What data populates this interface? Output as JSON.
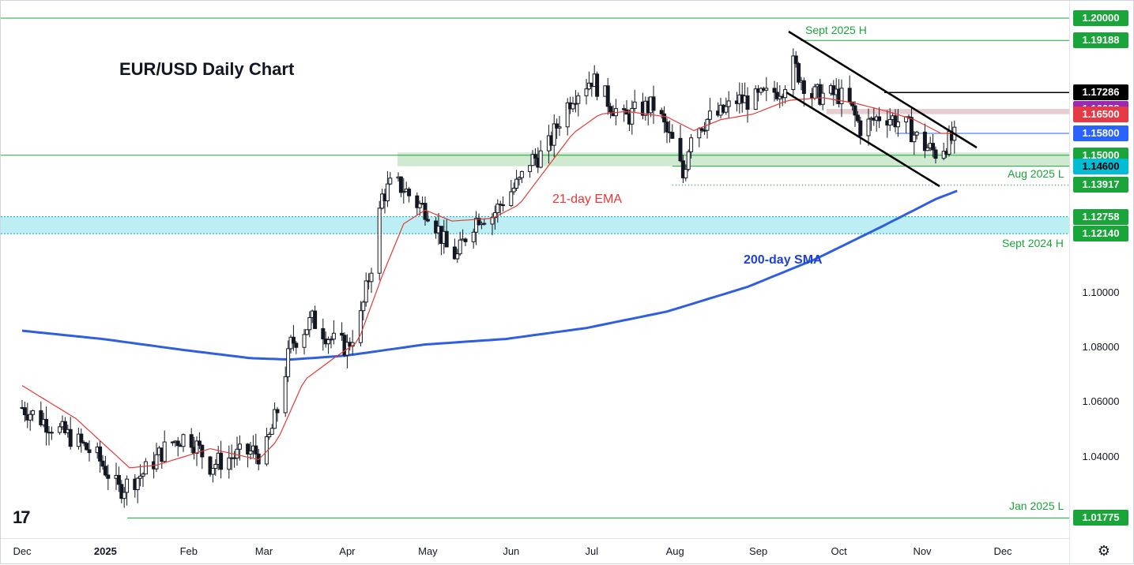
{
  "chart_data": {
    "type": "candlestick",
    "title": "EUR/USD Daily Chart",
    "ylim": [
      1.012,
      1.203
    ],
    "x_axis_labels": [
      {
        "label": "Dec",
        "bold": false,
        "day": 0
      },
      {
        "label": "2025",
        "bold": true,
        "day": 31
      },
      {
        "label": "Feb",
        "bold": false,
        "day": 62
      },
      {
        "label": "Mar",
        "bold": false,
        "day": 90
      },
      {
        "label": "Apr",
        "bold": false,
        "day": 121
      },
      {
        "label": "May",
        "bold": false,
        "day": 151
      },
      {
        "label": "Jun",
        "bold": false,
        "day": 182
      },
      {
        "label": "Jul",
        "bold": false,
        "day": 212
      },
      {
        "label": "Aug",
        "bold": false,
        "day": 243
      },
      {
        "label": "Sep",
        "bold": false,
        "day": 274
      },
      {
        "label": "Oct",
        "bold": false,
        "day": 304
      },
      {
        "label": "Nov",
        "bold": false,
        "day": 335
      },
      {
        "label": "Dec",
        "bold": false,
        "day": 365
      }
    ],
    "y_axis_ticks": [
      "1.10000",
      "1.08000",
      "1.06000",
      "1.04000"
    ],
    "price_badges": [
      {
        "label": "1.20000",
        "value": 1.2,
        "bg": "#1aa53a",
        "fg": "#ffffff"
      },
      {
        "label": "1.19188",
        "value": 1.19188,
        "bg": "#1aa53a",
        "fg": "#ffffff"
      },
      {
        "label": "1.17286",
        "value": 1.17286,
        "bg": "#000000",
        "fg": "#ffffff"
      },
      {
        "label": "1.16688",
        "value": 1.16688,
        "bg": "#9c27b0",
        "fg": "#ffffff"
      },
      {
        "label": "1.16500",
        "value": 1.165,
        "bg": "#e53945",
        "fg": "#ffffff"
      },
      {
        "label": "1.15800",
        "value": 1.158,
        "bg": "#2962ff",
        "fg": "#ffffff"
      },
      {
        "label": "1.15000",
        "value": 1.15,
        "bg": "#1aa53a",
        "fg": "#ffffff"
      },
      {
        "label": "1.14600",
        "value": 1.146,
        "bg": "#00bcd4",
        "fg": "#000000"
      },
      {
        "label": "1.13917",
        "value": 1.13917,
        "bg": "#1aa53a",
        "fg": "#ffffff"
      },
      {
        "label": "1.12758",
        "value": 1.12758,
        "bg": "#1aa53a",
        "fg": "#ffffff"
      },
      {
        "label": "1.12140",
        "value": 1.1214,
        "bg": "#1aa53a",
        "fg": "#ffffff"
      },
      {
        "label": "1.01775",
        "value": 1.01775,
        "bg": "#1aa53a",
        "fg": "#ffffff"
      }
    ],
    "levels": [
      {
        "value": 1.2,
        "color": "#1aa53a"
      },
      {
        "value": 1.19188,
        "color": "#1aa53a"
      },
      {
        "value": 1.17286,
        "color": "#000000"
      },
      {
        "value": 1.158,
        "color": "#2962ff"
      },
      {
        "value": 1.15,
        "color": "#1aa53a"
      },
      {
        "value": 1.146,
        "color": "#1aa53a"
      },
      {
        "value": 1.13917,
        "color": "#1aa53a",
        "dotted": true
      },
      {
        "value": 1.01775,
        "color": "#1aa53a"
      }
    ],
    "zones": [
      {
        "from": 1.1214,
        "to": 1.12758,
        "color": "#b2ebf2"
      },
      {
        "from": 1.146,
        "to": 1.151,
        "color": "#c8e6c9"
      },
      {
        "from": 1.165,
        "to": 1.16688,
        "color": "#e0c4c8"
      }
    ],
    "annotations": [
      {
        "text": "Sept 2025 H",
        "color": "green"
      },
      {
        "text": "Aug 2025 L",
        "color": "green"
      },
      {
        "text": "Sept 2024 H",
        "color": "green"
      },
      {
        "text": "Jan 2025 L",
        "color": "green"
      },
      {
        "text": "21-day EMA",
        "color": "red"
      },
      {
        "text": "200-day SMA",
        "color": "blue"
      }
    ],
    "closes_key": [
      [
        0,
        1.058
      ],
      [
        10,
        1.052
      ],
      [
        20,
        1.046
      ],
      [
        28,
        1.04
      ],
      [
        36,
        1.028
      ],
      [
        45,
        1.034
      ],
      [
        55,
        1.045
      ],
      [
        62,
        1.048
      ],
      [
        70,
        1.037
      ],
      [
        78,
        1.04
      ],
      [
        86,
        1.042
      ],
      [
        90,
        1.04
      ],
      [
        95,
        1.057
      ],
      [
        100,
        1.081
      ],
      [
        108,
        1.09
      ],
      [
        116,
        1.082
      ],
      [
        121,
        1.08
      ],
      [
        126,
        1.091
      ],
      [
        130,
        1.11
      ],
      [
        134,
        1.135
      ],
      [
        138,
        1.14
      ],
      [
        142,
        1.138
      ],
      [
        146,
        1.133
      ],
      [
        151,
        1.13
      ],
      [
        154,
        1.125
      ],
      [
        158,
        1.116
      ],
      [
        162,
        1.113
      ],
      [
        166,
        1.123
      ],
      [
        170,
        1.128
      ],
      [
        175,
        1.128
      ],
      [
        180,
        1.135
      ],
      [
        185,
        1.14
      ],
      [
        189,
        1.148
      ],
      [
        195,
        1.151
      ],
      [
        200,
        1.163
      ],
      [
        205,
        1.172
      ],
      [
        212,
        1.178
      ],
      [
        218,
        1.17
      ],
      [
        224,
        1.163
      ],
      [
        230,
        1.167
      ],
      [
        236,
        1.168
      ],
      [
        240,
        1.158
      ],
      [
        243,
        1.153
      ],
      [
        246,
        1.142
      ],
      [
        249,
        1.159
      ],
      [
        255,
        1.163
      ],
      [
        260,
        1.165
      ],
      [
        266,
        1.17
      ],
      [
        272,
        1.17
      ],
      [
        278,
        1.172
      ],
      [
        283,
        1.175
      ],
      [
        287,
        1.183
      ],
      [
        290,
        1.178
      ],
      [
        294,
        1.172
      ],
      [
        298,
        1.172
      ],
      [
        304,
        1.172
      ],
      [
        308,
        1.168
      ],
      [
        312,
        1.16
      ],
      [
        316,
        1.162
      ],
      [
        320,
        1.165
      ],
      [
        325,
        1.163
      ],
      [
        330,
        1.16
      ],
      [
        335,
        1.154
      ],
      [
        340,
        1.151
      ],
      [
        345,
        1.155
      ],
      [
        348,
        1.157
      ]
    ],
    "ema_key": [
      [
        0,
        1.066
      ],
      [
        20,
        1.054
      ],
      [
        40,
        1.036
      ],
      [
        50,
        1.037
      ],
      [
        70,
        1.043
      ],
      [
        88,
        1.039
      ],
      [
        95,
        1.046
      ],
      [
        105,
        1.068
      ],
      [
        116,
        1.076
      ],
      [
        125,
        1.082
      ],
      [
        134,
        1.106
      ],
      [
        142,
        1.125
      ],
      [
        150,
        1.13
      ],
      [
        160,
        1.126
      ],
      [
        175,
        1.127
      ],
      [
        185,
        1.132
      ],
      [
        195,
        1.145
      ],
      [
        205,
        1.158
      ],
      [
        215,
        1.165
      ],
      [
        225,
        1.166
      ],
      [
        240,
        1.164
      ],
      [
        250,
        1.159
      ],
      [
        260,
        1.163
      ],
      [
        272,
        1.165
      ],
      [
        285,
        1.17
      ],
      [
        298,
        1.171
      ],
      [
        310,
        1.169
      ],
      [
        322,
        1.166
      ],
      [
        332,
        1.163
      ],
      [
        342,
        1.158
      ],
      [
        348,
        1.158
      ]
    ],
    "sma_key": [
      [
        0,
        1.086
      ],
      [
        30,
        1.083
      ],
      [
        60,
        1.079
      ],
      [
        85,
        1.076
      ],
      [
        100,
        1.0755
      ],
      [
        121,
        1.077
      ],
      [
        150,
        1.081
      ],
      [
        180,
        1.083
      ],
      [
        210,
        1.087
      ],
      [
        240,
        1.093
      ],
      [
        270,
        1.102
      ],
      [
        295,
        1.112
      ],
      [
        320,
        1.124
      ],
      [
        340,
        1.134
      ],
      [
        348,
        1.137
      ]
    ]
  }
}
